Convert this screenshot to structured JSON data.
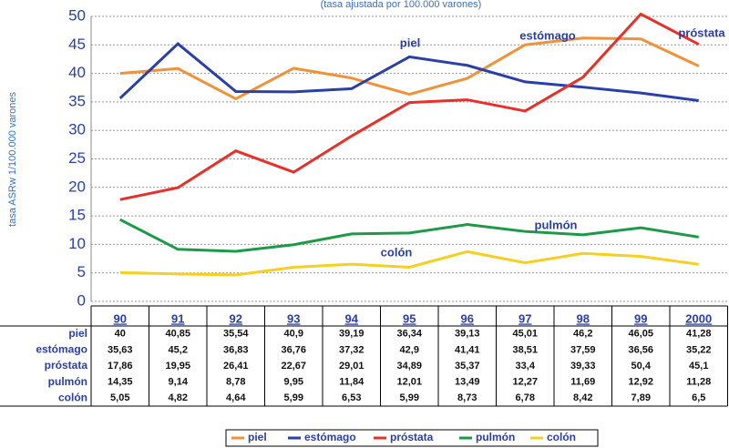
{
  "chart_data": {
    "type": "line",
    "subtitle": "(tasa ajustada por 100.000 varones)",
    "y_label": "tasa ASRw 1/100.000 varones",
    "categories": [
      "90",
      "91",
      "92",
      "93",
      "94",
      "95",
      "96",
      "97",
      "98",
      "99",
      "2000"
    ],
    "ylim": [
      0,
      50
    ],
    "yticks": [
      0,
      5,
      10,
      15,
      20,
      25,
      30,
      35,
      40,
      45,
      50
    ],
    "grid": true,
    "legend": "bottom",
    "series": [
      {
        "name": "piel",
        "color": "#f0923a",
        "values": [
          40,
          40.85,
          35.54,
          40.9,
          39.19,
          36.34,
          39.13,
          45.01,
          46.2,
          46.05,
          41.28
        ],
        "value_labels": [
          "40",
          "40,85",
          "35,54",
          "40,9",
          "39,19",
          "36,34",
          "39,13",
          "45,01",
          "46,2",
          "46,05",
          "41,28"
        ]
      },
      {
        "name": "estómago",
        "color": "#2b3fa8",
        "values": [
          35.63,
          45.2,
          36.83,
          36.76,
          37.32,
          42.9,
          41.41,
          38.51,
          37.59,
          36.56,
          35.22
        ],
        "value_labels": [
          "35,63",
          "45,2",
          "36,83",
          "36,76",
          "37,32",
          "42,9",
          "41,41",
          "38,51",
          "37,59",
          "36,56",
          "35,22"
        ]
      },
      {
        "name": "próstata",
        "color": "#e8302a",
        "values": [
          17.86,
          19.95,
          26.41,
          22.67,
          29.01,
          34.89,
          35.37,
          33.4,
          39.33,
          50.4,
          45.1
        ],
        "value_labels": [
          "17,86",
          "19,95",
          "26,41",
          "22,67",
          "29,01",
          "34,89",
          "35,37",
          "33,4",
          "39,33",
          "50,4",
          "45,1"
        ]
      },
      {
        "name": "pulmón",
        "color": "#1c9a48",
        "values": [
          14.35,
          9.14,
          8.78,
          9.95,
          11.84,
          12.01,
          13.49,
          12.27,
          11.69,
          12.92,
          11.28
        ],
        "value_labels": [
          "14,35",
          "9,14",
          "8,78",
          "9,95",
          "11,84",
          "12,01",
          "13,49",
          "12,27",
          "11,69",
          "12,92",
          "11,28"
        ]
      },
      {
        "name": "colón",
        "color": "#f5d020",
        "values": [
          5.05,
          4.82,
          4.64,
          5.99,
          6.53,
          5.99,
          8.73,
          6.78,
          8.42,
          7.89,
          6.5
        ],
        "value_labels": [
          "5,05",
          "4,82",
          "4,64",
          "5,99",
          "6,53",
          "5,99",
          "8,73",
          "6,78",
          "8,42",
          "7,89",
          "6,5"
        ]
      }
    ]
  }
}
